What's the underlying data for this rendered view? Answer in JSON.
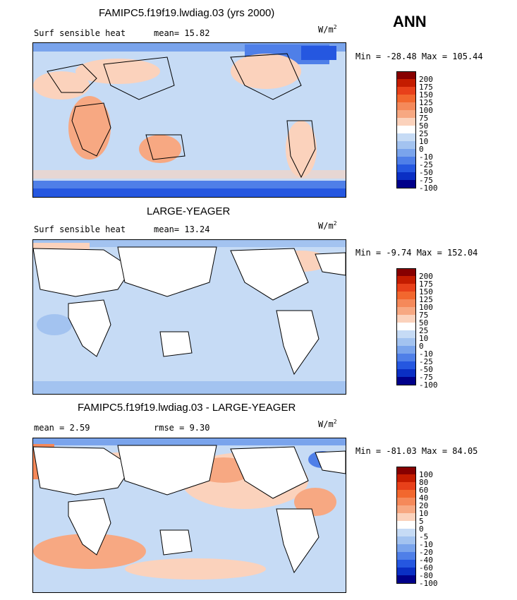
{
  "season": "ANN",
  "panels": [
    {
      "title": "FAMIPC5.f19f19.lwdiag.03 (yrs 2000)",
      "left_text": "Surf sensible heat",
      "stat1": "mean=   15.82",
      "stat2": "",
      "units_base": "W/m",
      "units_exp": "2",
      "minmax": "Min = -28.48 Max = 105.44",
      "levels": [
        "200",
        "175",
        "150",
        "125",
        "100",
        "75",
        "50",
        "25",
        "10",
        "0",
        "-10",
        "-25",
        "-50",
        "-75",
        "-100"
      ],
      "colors": [
        "#870000",
        "#c41c00",
        "#e8401a",
        "#f2672e",
        "#f5895a",
        "#f7a882",
        "#fbd2bc",
        "#ffffff",
        "#c6dbf5",
        "#a3c3f0",
        "#7aa4ec",
        "#4f7fe8",
        "#2557e0",
        "#0a2fc4",
        "#00008a"
      ]
    },
    {
      "title": "LARGE-YEAGER",
      "left_text": "Surf sensible heat",
      "stat1": "mean=   13.24",
      "stat2": "",
      "units_base": "W/m",
      "units_exp": "2",
      "minmax": "Min =  -9.74 Max = 152.04",
      "levels": [
        "200",
        "175",
        "150",
        "125",
        "100",
        "75",
        "50",
        "25",
        "10",
        "0",
        "-10",
        "-25",
        "-50",
        "-75",
        "-100"
      ],
      "colors": [
        "#870000",
        "#c41c00",
        "#e8401a",
        "#f2672e",
        "#f5895a",
        "#f7a882",
        "#fbd2bc",
        "#ffffff",
        "#c6dbf5",
        "#a3c3f0",
        "#7aa4ec",
        "#4f7fe8",
        "#2557e0",
        "#0a2fc4",
        "#00008a"
      ]
    },
    {
      "title": "FAMIPC5.f19f19.lwdiag.03 - LARGE-YEAGER",
      "left_text": "mean =    2.59",
      "stat1": "rmse =    9.30",
      "stat2": "",
      "units_base": "W/m",
      "units_exp": "2",
      "minmax": "Min = -81.03 Max =  84.05",
      "levels": [
        "100",
        "80",
        "60",
        "40",
        "20",
        "10",
        "5",
        "0",
        "-5",
        "-10",
        "-20",
        "-40",
        "-60",
        "-80",
        "-100"
      ],
      "colors": [
        "#870000",
        "#c41c00",
        "#e8401a",
        "#f2672e",
        "#f5895a",
        "#f7a882",
        "#fbd2bc",
        "#ffffff",
        "#c6dbf5",
        "#a3c3f0",
        "#7aa4ec",
        "#4f7fe8",
        "#2557e0",
        "#0a2fc4",
        "#00008a"
      ]
    }
  ]
}
